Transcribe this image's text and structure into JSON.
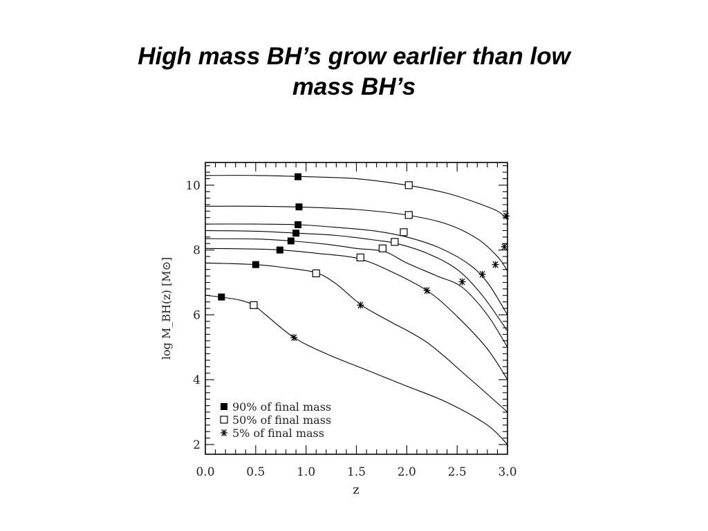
{
  "slide": {
    "title_line1": "High mass BH’s grow earlier than low",
    "title_line2": "mass BH’s"
  },
  "chart_data": {
    "type": "line",
    "title": "",
    "xlabel": "z",
    "ylabel": "log M_BH(z)  [M⊙]",
    "xlim": [
      0.0,
      3.0
    ],
    "ylim": [
      1.7,
      10.7
    ],
    "xticks": [
      0.0,
      0.5,
      1.0,
      1.5,
      2.0,
      2.5,
      3.0
    ],
    "xtick_labels": [
      "0.0",
      "0.5",
      "1.0",
      "1.5",
      "2.0",
      "2.5",
      "3.0"
    ],
    "yticks": [
      2,
      4,
      6,
      8,
      10
    ],
    "ytick_labels": [
      "2",
      "4",
      "6",
      "8",
      "10"
    ],
    "grid": false,
    "legend_position": "bottom-left",
    "legend": [
      {
        "marker": "filled-square",
        "label": "90% of final mass"
      },
      {
        "marker": "open-square",
        "label": "50% of final mass"
      },
      {
        "marker": "asterisk",
        "label": "5% of final mass"
      }
    ],
    "series": [
      {
        "x": [
          0,
          0.5,
          1.0,
          1.5,
          2.0,
          2.4,
          2.7,
          2.9,
          3.0
        ],
        "y": [
          10.3,
          10.3,
          10.26,
          10.2,
          10.0,
          9.75,
          9.45,
          9.2,
          8.95
        ],
        "p90": [
          0.92,
          10.26
        ],
        "p50": [
          2.02,
          10.0
        ],
        "p5": [
          3.0,
          9.05
        ]
      },
      {
        "x": [
          0,
          0.5,
          1.0,
          1.5,
          2.0,
          2.4,
          2.7,
          2.9,
          3.0
        ],
        "y": [
          9.35,
          9.35,
          9.32,
          9.25,
          9.08,
          8.8,
          8.35,
          7.8,
          7.35
        ],
        "p90": [
          0.93,
          9.33
        ],
        "p50": [
          2.02,
          9.08
        ],
        "p5": [
          2.97,
          8.1
        ]
      },
      {
        "x": [
          0,
          0.5,
          0.92,
          1.3,
          1.7,
          2.0,
          2.3,
          2.6,
          2.8,
          3.0
        ],
        "y": [
          8.8,
          8.8,
          8.78,
          8.7,
          8.58,
          8.4,
          8.1,
          7.6,
          7.0,
          6.0
        ],
        "p90": [
          0.92,
          8.78
        ],
        "p50": [
          1.97,
          8.55
        ],
        "p5": [
          2.88,
          7.55
        ]
      },
      {
        "x": [
          0,
          0.5,
          0.9,
          1.3,
          1.7,
          1.9,
          2.2,
          2.5,
          2.75,
          3.0
        ],
        "y": [
          8.6,
          8.58,
          8.52,
          8.45,
          8.3,
          8.2,
          7.9,
          7.4,
          6.6,
          5.5
        ],
        "p90": [
          0.9,
          8.52
        ],
        "p50": [
          1.88,
          8.25
        ],
        "p5": [
          2.75,
          7.25
        ]
      },
      {
        "x": [
          0,
          0.5,
          0.85,
          1.2,
          1.5,
          1.78,
          2.0,
          2.3,
          2.55,
          2.8,
          3.0
        ],
        "y": [
          8.35,
          8.34,
          8.28,
          8.18,
          8.05,
          7.95,
          7.6,
          7.2,
          6.85,
          6.0,
          5.0
        ],
        "p90": [
          0.85,
          8.28
        ],
        "p50": [
          1.76,
          8.05
        ],
        "p5": [
          2.55,
          7.02
        ]
      },
      {
        "x": [
          0,
          0.5,
          0.75,
          1.1,
          1.5,
          1.8,
          2.2,
          2.5,
          2.8,
          3.0
        ],
        "y": [
          8.05,
          8.03,
          8.0,
          7.9,
          7.75,
          7.4,
          6.75,
          5.95,
          4.95,
          4.0
        ],
        "p90": [
          0.74,
          8.0
        ],
        "p50": [
          1.54,
          7.77
        ],
        "p5": [
          2.2,
          6.75
        ]
      },
      {
        "x": [
          0,
          0.5,
          0.8,
          1.1,
          1.3,
          1.55,
          1.8,
          2.2,
          2.6,
          3.0
        ],
        "y": [
          7.6,
          7.55,
          7.45,
          7.3,
          6.95,
          6.3,
          5.85,
          5.15,
          4.1,
          3.0
        ],
        "p90": [
          0.5,
          7.55
        ],
        "p50": [
          1.1,
          7.28
        ],
        "p5": [
          1.54,
          6.3
        ]
      },
      {
        "x": [
          0,
          0.15,
          0.35,
          0.48,
          0.6,
          0.88,
          1.2,
          1.6,
          2.0,
          2.4,
          2.8,
          3.0
        ],
        "y": [
          6.6,
          6.55,
          6.45,
          6.3,
          6.0,
          5.3,
          4.8,
          4.3,
          3.8,
          3.3,
          2.6,
          2.0
        ],
        "p90": [
          0.16,
          6.55
        ],
        "p50": [
          0.48,
          6.3
        ],
        "p5": [
          0.88,
          5.3
        ]
      }
    ]
  }
}
